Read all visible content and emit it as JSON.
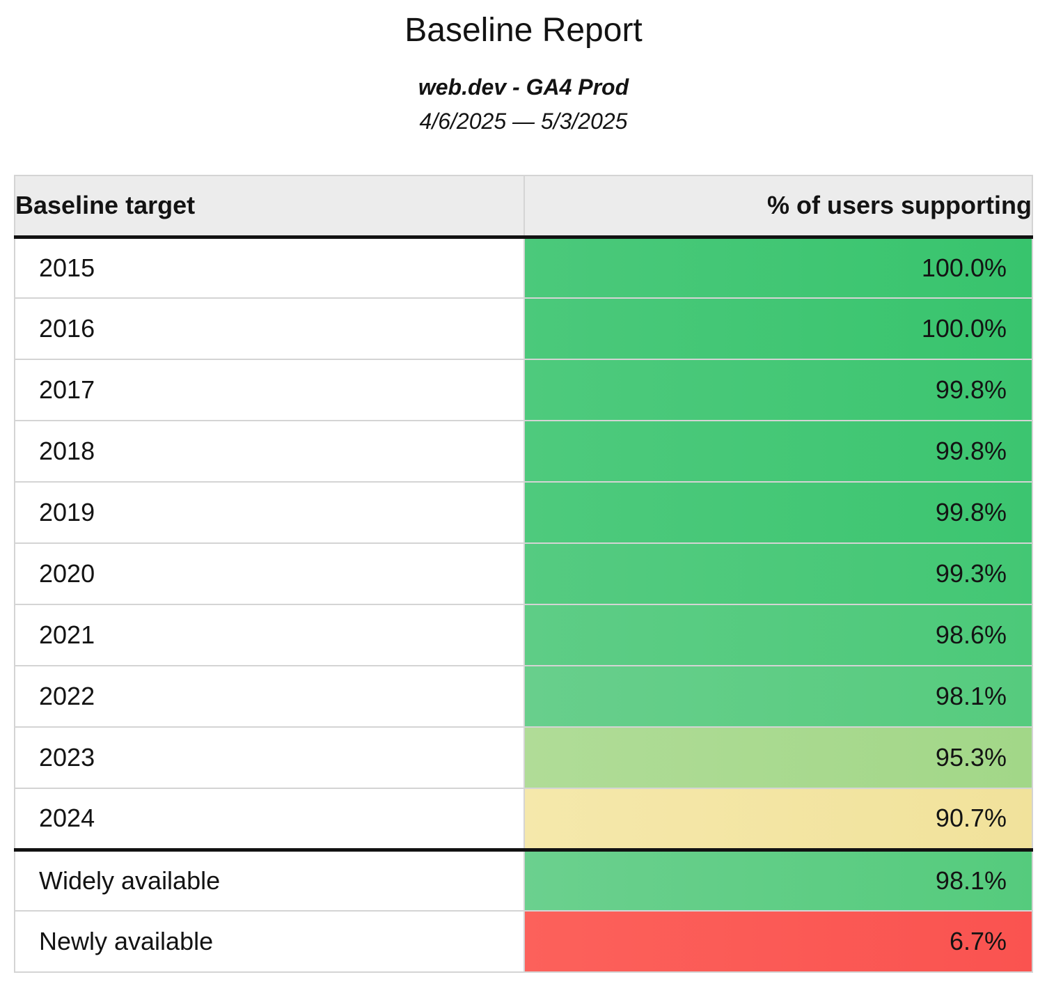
{
  "page": {
    "title": "Baseline Report",
    "subtitle": "web.dev - GA4 Prod",
    "date_range": "4/6/2025 — 5/3/2025"
  },
  "table": {
    "columns": {
      "target": "Baseline target",
      "pct": "% of users supporting"
    },
    "rows": [
      {
        "label": "2015",
        "value": "100.0%",
        "bg": {
          "from": "#4bc97b",
          "to": "#38c46d"
        }
      },
      {
        "label": "2016",
        "value": "100.0%",
        "bg": {
          "from": "#4bc97b",
          "to": "#38c46d"
        }
      },
      {
        "label": "2017",
        "value": "99.8%",
        "bg": {
          "from": "#4eca7d",
          "to": "#3cc570"
        }
      },
      {
        "label": "2018",
        "value": "99.8%",
        "bg": {
          "from": "#4eca7d",
          "to": "#3cc570"
        }
      },
      {
        "label": "2019",
        "value": "99.8%",
        "bg": {
          "from": "#4eca7d",
          "to": "#3cc570"
        }
      },
      {
        "label": "2020",
        "value": "99.3%",
        "bg": {
          "from": "#55cb81",
          "to": "#43c774"
        }
      },
      {
        "label": "2021",
        "value": "98.6%",
        "bg": {
          "from": "#5ecd86",
          "to": "#4cc979"
        }
      },
      {
        "label": "2022",
        "value": "98.1%",
        "bg": {
          "from": "#68cf8c",
          "to": "#56cb7e"
        }
      },
      {
        "label": "2023",
        "value": "95.3%",
        "bg": {
          "from": "#b0dc97",
          "to": "#a2d788"
        }
      },
      {
        "label": "2024",
        "value": "90.7%",
        "bg": {
          "from": "#f5e8ab",
          "to": "#f1e29b"
        }
      },
      {
        "label": "Widely available",
        "value": "98.1%",
        "bg": {
          "from": "#6bd08e",
          "to": "#55cb7d"
        }
      },
      {
        "label": "Newly available",
        "value": "6.7%",
        "bg": {
          "from": "#fc615b",
          "to": "#fa5350"
        }
      }
    ],
    "group_separator_after": "2024"
  },
  "colors": {
    "header_bg": "#ececec",
    "grid_border": "#d4d4d4",
    "section_border": "#121212",
    "heat_green": "#3ec572",
    "heat_yellow": "#f2e4a2",
    "heat_red": "#fb5953",
    "text": "#131313"
  },
  "chart_data": {
    "type": "table",
    "title": "Baseline Report",
    "subtitle": "web.dev - GA4 Prod",
    "date_range": "4/6/2025 — 5/3/2025",
    "columns": [
      "Baseline target",
      "% of users supporting"
    ],
    "categories": [
      "2015",
      "2016",
      "2017",
      "2018",
      "2019",
      "2020",
      "2021",
      "2022",
      "2023",
      "2024",
      "Widely available",
      "Newly available"
    ],
    "values": [
      100.0,
      100.0,
      99.8,
      99.8,
      99.8,
      99.3,
      98.6,
      98.1,
      95.3,
      90.7,
      98.1,
      6.7
    ],
    "value_unit": "%",
    "layout": "cells color-coded on red-yellow-green heat scale by value; thick black rule separates year targets from availability rows"
  }
}
